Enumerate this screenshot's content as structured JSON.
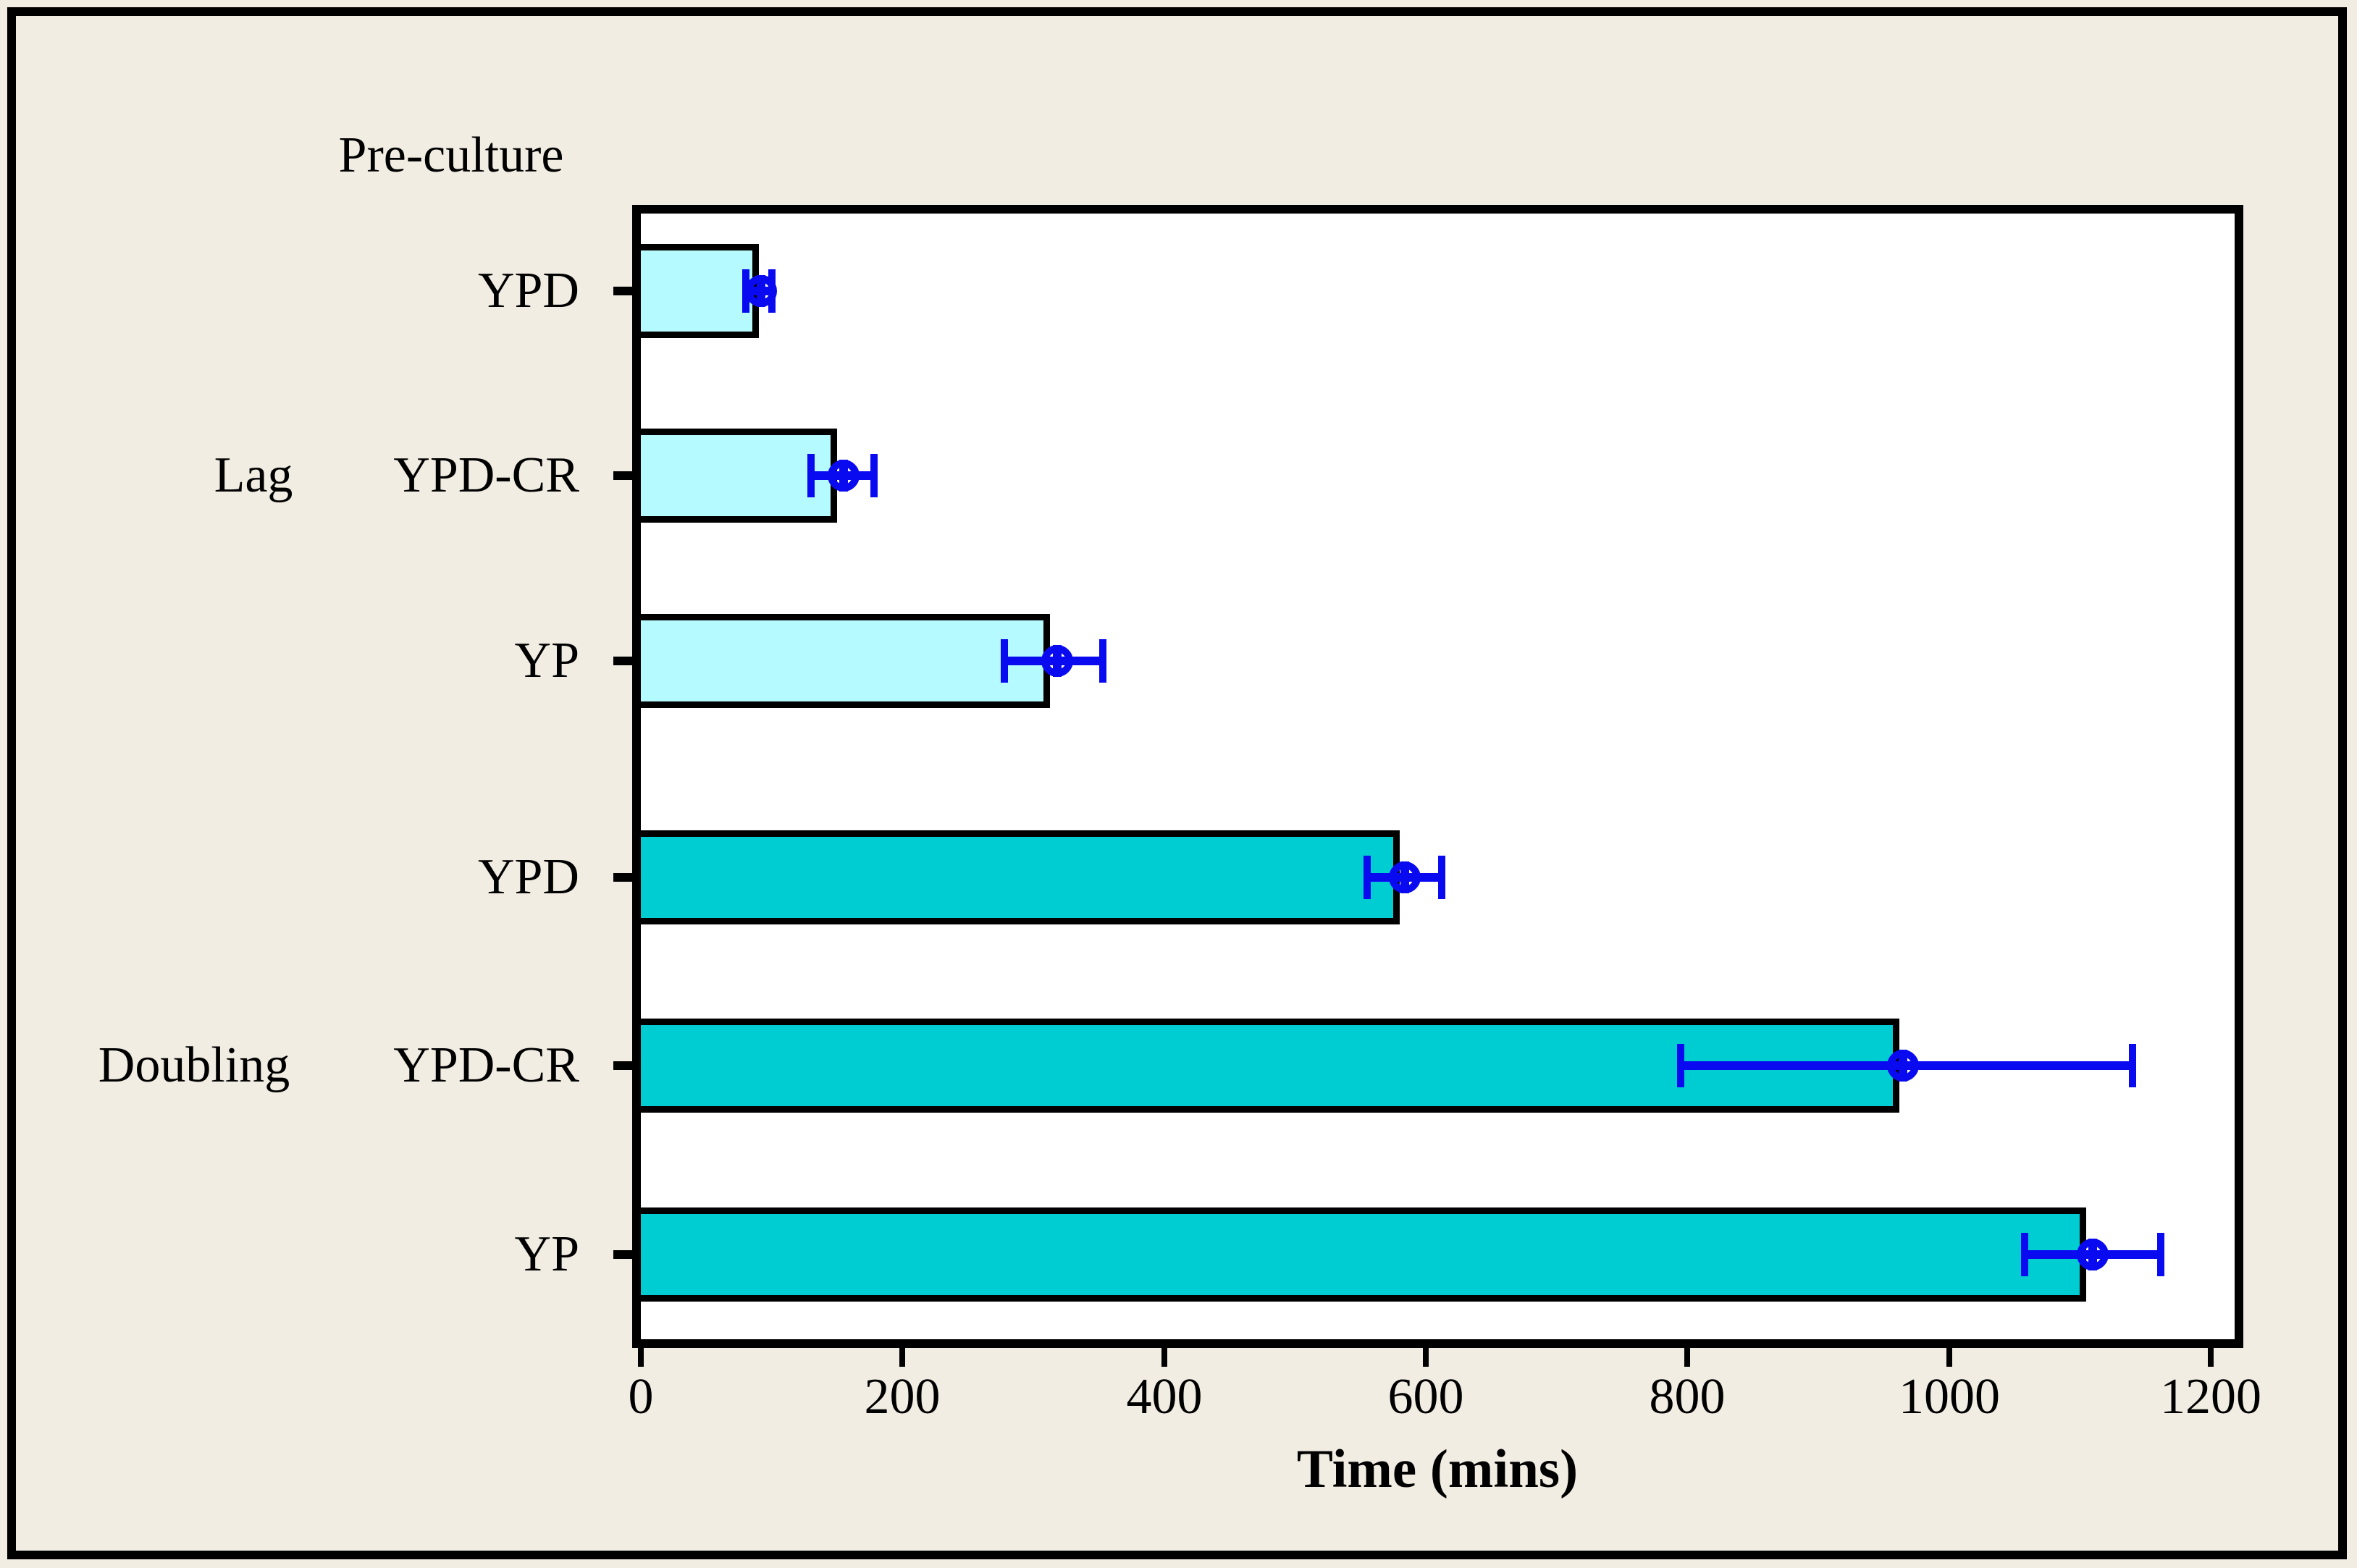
{
  "chart_data": {
    "type": "bar",
    "orientation": "horizontal",
    "axis_header": "Pre-culture",
    "xlabel": "Time (mins)",
    "xlim": [
      0,
      1218
    ],
    "xticks": [
      0,
      200,
      400,
      600,
      800,
      1000,
      1200
    ],
    "grid": false,
    "legend_position": "none",
    "groups": [
      {
        "name": "Lag",
        "bars": [
          {
            "label": "YPD",
            "value": 90,
            "error": {
              "center": 92,
              "low": 80,
              "high": 100
            }
          },
          {
            "label": "YPD-CR",
            "value": 150,
            "error": {
              "center": 155,
              "low": 130,
              "high": 178
            }
          },
          {
            "label": "YP",
            "value": 313,
            "error": {
              "center": 318,
              "low": 278,
              "high": 353
            }
          }
        ]
      },
      {
        "name": "Doubling",
        "bars": [
          {
            "label": "YPD",
            "value": 580,
            "error": {
              "center": 584,
              "low": 555,
              "high": 612
            }
          },
          {
            "label": "YPD-CR",
            "value": 962,
            "error": {
              "center": 965,
              "low": 795,
              "high": 1140
            }
          },
          {
            "label": "YP",
            "value": 1105,
            "error": {
              "center": 1110,
              "low": 1058,
              "high": 1162
            }
          }
        ]
      }
    ],
    "colors": {
      "lag_bar_fill": "#B4FAFF",
      "doubling_bar_fill": "#00CDD1",
      "bar_border": "#000000",
      "error_marker": "#0A0AF0",
      "plot_background": "#FFFFFF",
      "figure_background": "#F2EDE2",
      "frame": "#000000",
      "text": "#000000"
    }
  }
}
